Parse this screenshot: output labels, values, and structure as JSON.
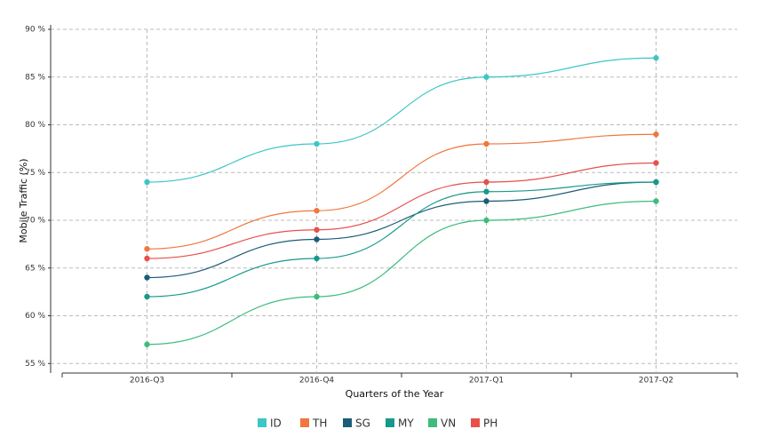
{
  "chart_data": {
    "type": "line",
    "x_label": "Quarters of the Year",
    "y_label": "Mobile Traffic (%)",
    "categories": [
      "2016-Q3",
      "2016-Q4",
      "2017-Q1",
      "2017-Q2"
    ],
    "series": [
      {
        "name": "ID",
        "color": "#3cc6c4",
        "values": [
          74,
          78,
          85,
          87
        ]
      },
      {
        "name": "TH",
        "color": "#f0773d",
        "values": [
          67,
          71,
          78,
          79
        ]
      },
      {
        "name": "SG",
        "color": "#1b5c7a",
        "values": [
          64,
          68,
          72,
          74
        ]
      },
      {
        "name": "MY",
        "color": "#17998c",
        "values": [
          62,
          66,
          73,
          74
        ]
      },
      {
        "name": "VN",
        "color": "#3fbb7c",
        "values": [
          57,
          62,
          70,
          72
        ]
      },
      {
        "name": "PH",
        "color": "#e8504b",
        "values": [
          66,
          69,
          74,
          76
        ]
      }
    ],
    "ylim": [
      54,
      90
    ],
    "yticks": [
      {
        "value": 55,
        "label": "55 %"
      },
      {
        "value": 60,
        "label": "60 %"
      },
      {
        "value": 65,
        "label": "65 %"
      },
      {
        "value": 70,
        "label": "70 %"
      },
      {
        "value": 75,
        "label": "75 %"
      },
      {
        "value": 80,
        "label": "80 %"
      },
      {
        "value": 85,
        "label": "85 %"
      },
      {
        "value": 90,
        "label": "90 %"
      }
    ],
    "grid": true
  }
}
